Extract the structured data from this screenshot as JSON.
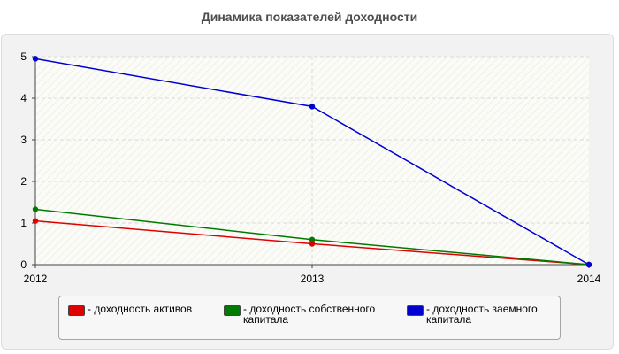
{
  "chart_data": {
    "type": "line",
    "title": "Динамика показателей доходности",
    "xlabel": "",
    "ylabel": "",
    "x": [
      "2012",
      "2013",
      "2014"
    ],
    "ylim": [
      0,
      5
    ],
    "yticks": [
      "0",
      "1",
      "2",
      "3",
      "4",
      "5"
    ],
    "grid": true,
    "legend_position": "bottom",
    "series": [
      {
        "name": "- доходность активов",
        "color": "#e00000",
        "values": [
          1.05,
          0.5,
          0
        ]
      },
      {
        "name": "- доходность собственного капитала",
        "color": "#007a00",
        "values": [
          1.33,
          0.6,
          0
        ]
      },
      {
        "name": "- доходность заемного капитала",
        "color": "#0000d0",
        "values": [
          4.95,
          3.8,
          0
        ]
      }
    ]
  }
}
